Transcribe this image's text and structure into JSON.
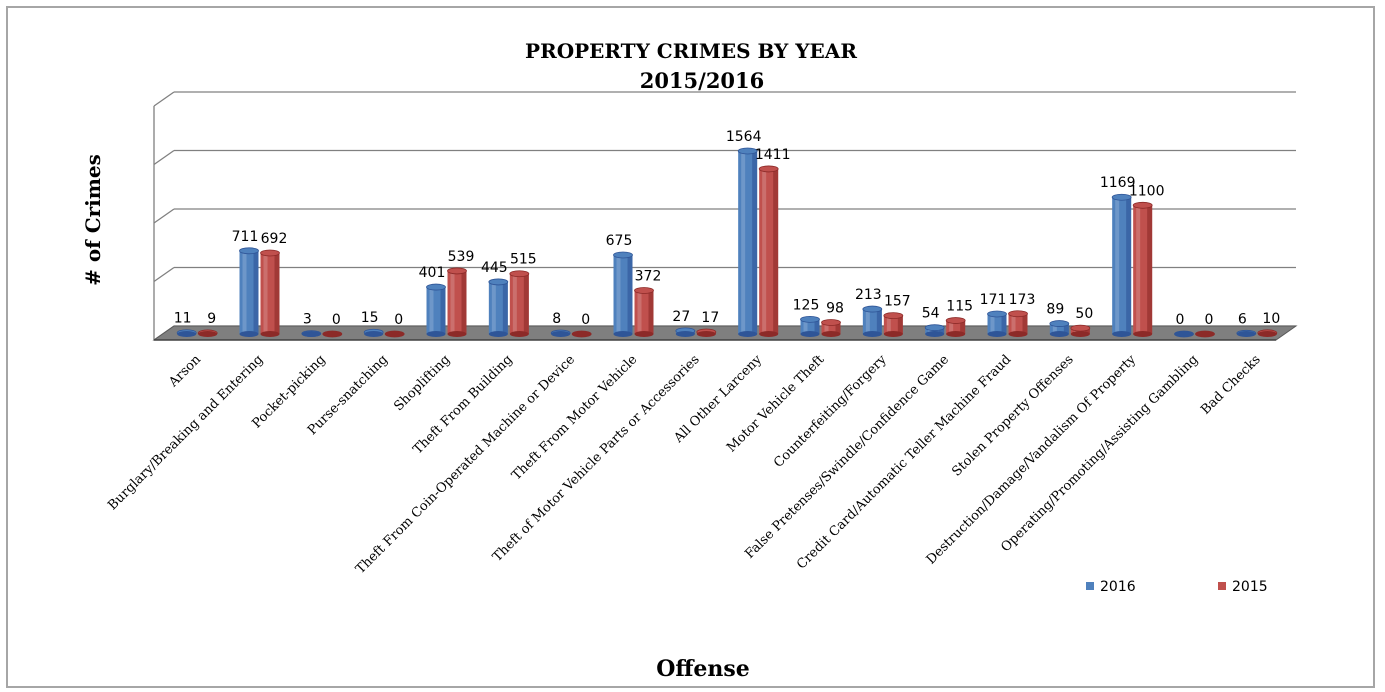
{
  "chart_data": {
    "type": "bar",
    "title": "PROPERTY CRIMES BY YEAR",
    "subtitle": "2015/2016",
    "xlabel": "Offense",
    "ylabel": "# of Crimes",
    "ylim": [
      0,
      2000
    ],
    "grid": true,
    "legend_position": "bottom-right",
    "categories": [
      "Arson",
      "Burglary/Breaking and Entering",
      "Pocket-picking",
      "Purse-snatching",
      "Shoplifting",
      "Theft From Building",
      "Theft From Coin-Operated Machine or Device",
      "Theft From Motor Vehicle",
      "Theft of Motor Vehicle Parts or Accessories",
      "All Other Larceny",
      "Motor Vehicle Theft",
      "Counterfeiting/Forgery",
      "False Pretenses/Swindle/Confidence Game",
      "Credit Card/Automatic Teller Machine Fraud",
      "Stolen Property Offenses",
      "Destruction/Damage/Vandalism Of Property",
      "Operating/Promoting/Assisting Gambling",
      "Bad Checks"
    ],
    "series": [
      {
        "name": "2016",
        "color": "#4f81bd",
        "side_color": "#2f5597",
        "values": [
          11,
          711,
          3,
          15,
          401,
          445,
          8,
          675,
          27,
          1564,
          125,
          213,
          54,
          171,
          89,
          1169,
          0,
          6
        ]
      },
      {
        "name": "2015",
        "color": "#c0504d",
        "side_color": "#8c2a28",
        "values": [
          9,
          692,
          0,
          0,
          539,
          515,
          0,
          372,
          17,
          1411,
          98,
          157,
          115,
          173,
          50,
          1100,
          0,
          10
        ]
      }
    ]
  }
}
